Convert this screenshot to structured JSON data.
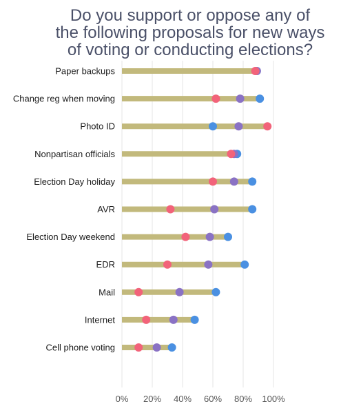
{
  "title_lines": [
    "Do you support or oppose any of",
    "the following proposals for new ways",
    "of voting or conducting elections?"
  ],
  "chart_data": {
    "type": "dumbbell",
    "title": "Do you support or oppose any of the following proposals for new ways of voting or conducting elections?",
    "categories": [
      "Paper backups",
      "Change reg when moving",
      "Photo ID",
      "Nonpartisan officials",
      "Election Day holiday",
      "AVR",
      "Election Day weekend",
      "EDR",
      "Mail",
      "Internet",
      "Cell phone voting"
    ],
    "series": [
      {
        "color": "#4a90e2",
        "values": [
          89,
          91,
          60,
          76,
          86,
          86,
          70,
          81,
          62,
          48,
          33
        ]
      },
      {
        "color": "#8a72c4",
        "values": [
          89,
          78,
          77,
          74,
          74,
          61,
          58,
          57,
          38,
          34,
          23
        ]
      },
      {
        "color": "#f2637a",
        "values": [
          88,
          62,
          96,
          72,
          60,
          32,
          42,
          30,
          11,
          16,
          11
        ]
      }
    ],
    "bar_color": "#c2b97c",
    "xlim": [
      0,
      100
    ],
    "xticks": [
      0,
      20,
      40,
      60,
      80,
      100
    ],
    "xtick_labels": [
      "0%",
      "20%",
      "40%",
      "60%",
      "80%",
      "100%"
    ],
    "grid": true
  }
}
